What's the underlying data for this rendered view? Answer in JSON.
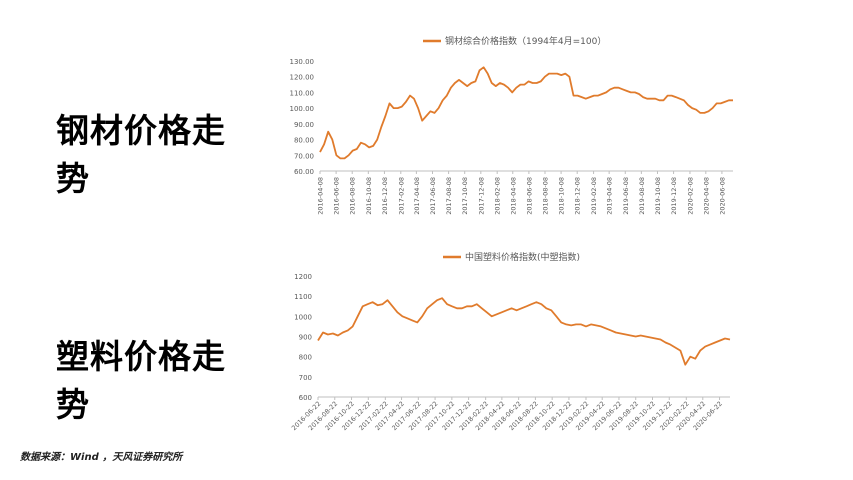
{
  "headings": {
    "steel": "钢材价格走势",
    "plastic": "塑料价格走势"
  },
  "source": "数据来源：Wind ，天风证券研究所",
  "colors": {
    "line": "#E07B2C",
    "axis": "#BFBFBF",
    "text": "#595959"
  },
  "chart_data": [
    {
      "type": "line",
      "title": "钢材综合价格指数（1994年4月=100）",
      "series": [
        {
          "name": "钢材综合价格指数（1994年4月=100）"
        }
      ],
      "yticks": [
        "60.00",
        "70.00",
        "80.00",
        "90.00",
        "100.00",
        "110.00",
        "120.00",
        "130.00"
      ],
      "ylim": [
        60,
        130
      ],
      "xticks": [
        "2016-04-08",
        "2016-06-08",
        "2016-08-08",
        "2016-10-08",
        "2016-12-08",
        "2017-02-08",
        "2017-04-08",
        "2017-06-08",
        "2017-08-08",
        "2017-10-08",
        "2017-12-08",
        "2018-02-08",
        "2018-04-08",
        "2018-06-08",
        "2018-08-08",
        "2018-10-08",
        "2018-12-08",
        "2019-02-08",
        "2019-04-08",
        "2019-06-08",
        "2019-08-08",
        "2019-10-08",
        "2019-12-08",
        "2020-02-08",
        "2020-04-08",
        "2020-06-08"
      ],
      "values": [
        72,
        77,
        85,
        80,
        70,
        68,
        68,
        70,
        73,
        74,
        78,
        77,
        75,
        76,
        80,
        88,
        95,
        103,
        100,
        100,
        101,
        104,
        108,
        106,
        100,
        92,
        95,
        98,
        97,
        100,
        105,
        108,
        113,
        116,
        118,
        116,
        114,
        116,
        117,
        124,
        126,
        122,
        116,
        114,
        116,
        115,
        113,
        110,
        113,
        115,
        115,
        117,
        116,
        116,
        117,
        120,
        122,
        122,
        122,
        121,
        122,
        120,
        108,
        108,
        107,
        106,
        107,
        108,
        108,
        109,
        110,
        112,
        113,
        113,
        112,
        111,
        110,
        110,
        109,
        107,
        106,
        106,
        106,
        105,
        105,
        108,
        108,
        107,
        106,
        105,
        102,
        100,
        99,
        97,
        97,
        98,
        100,
        103,
        103,
        104,
        105,
        105
      ],
      "x_start": "2016-04-08",
      "x_end": "2020-07-20"
    },
    {
      "type": "line",
      "title": "中国塑料价格指数(中塑指数)",
      "series": [
        {
          "name": "中国塑料价格指数(中塑指数)"
        }
      ],
      "yticks": [
        "600",
        "700",
        "800",
        "900",
        "1000",
        "1100",
        "1200"
      ],
      "ylim": [
        600,
        1200
      ],
      "xticks": [
        "2016-06-22",
        "2016-08-22",
        "2016-10-22",
        "2016-12-22",
        "2017-02-22",
        "2017-04-22",
        "2017-06-22",
        "2017-08-22",
        "2017-10-22",
        "2017-12-22",
        "2018-02-22",
        "2018-04-22",
        "2018-06-22",
        "2018-08-22",
        "2018-10-22",
        "2018-12-22",
        "2019-02-22",
        "2019-04-22",
        "2019-06-22",
        "2019-08-22",
        "2019-10-22",
        "2019-12-22",
        "2020-02-22",
        "2020-04-22",
        "2020-06-22"
      ],
      "values": [
        880,
        920,
        910,
        915,
        905,
        920,
        930,
        950,
        1000,
        1050,
        1060,
        1070,
        1055,
        1060,
        1080,
        1050,
        1020,
        1000,
        990,
        980,
        970,
        1000,
        1040,
        1060,
        1080,
        1090,
        1060,
        1050,
        1040,
        1040,
        1050,
        1050,
        1060,
        1040,
        1020,
        1000,
        1010,
        1020,
        1030,
        1040,
        1030,
        1040,
        1050,
        1060,
        1070,
        1060,
        1040,
        1030,
        1000,
        970,
        960,
        955,
        960,
        960,
        950,
        960,
        955,
        950,
        940,
        930,
        920,
        915,
        910,
        905,
        900,
        905,
        900,
        895,
        890,
        885,
        870,
        860,
        845,
        830,
        760,
        800,
        790,
        830,
        850,
        860,
        870,
        880,
        890,
        885
      ],
      "x_start": "2016-06-22",
      "x_end": "2020-07-30"
    }
  ]
}
